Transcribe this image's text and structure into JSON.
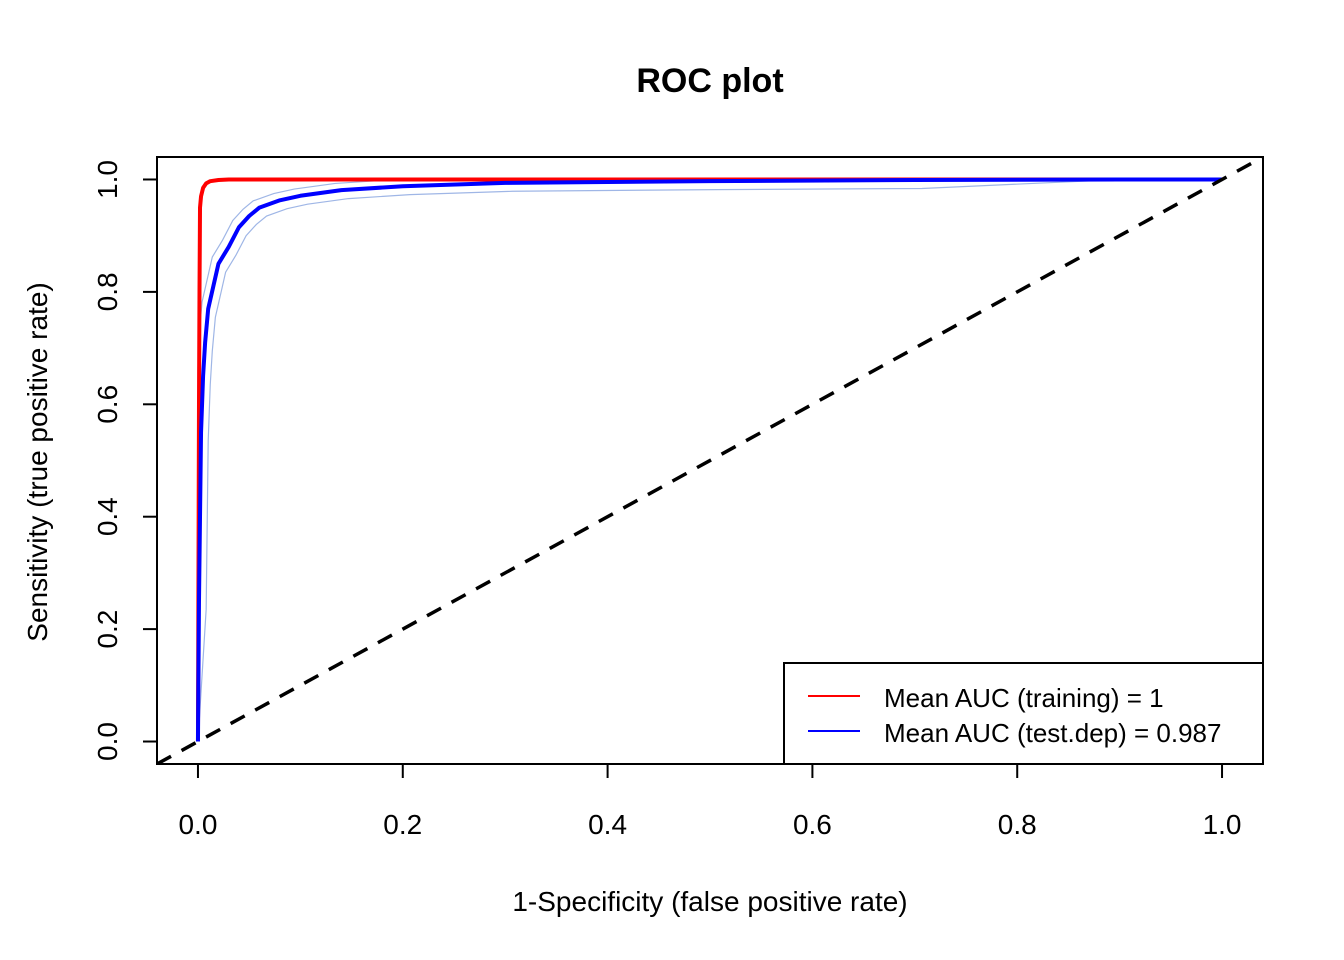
{
  "chart_data": {
    "type": "line",
    "title": "ROC plot",
    "xlabel": "1-Specificity (false positive rate)",
    "ylabel": "Sensitivity (true positive rate)",
    "xlim": [
      -0.04,
      1.04
    ],
    "ylim": [
      -0.04,
      1.04
    ],
    "x_ticks": [
      0.0,
      0.2,
      0.4,
      0.6,
      0.8,
      1.0
    ],
    "y_ticks": [
      0.0,
      0.2,
      0.4,
      0.6,
      0.8,
      1.0
    ],
    "x_tick_labels": [
      "0.0",
      "0.2",
      "0.4",
      "0.6",
      "0.8",
      "1.0"
    ],
    "y_tick_labels": [
      "0.0",
      "0.2",
      "0.4",
      "0.6",
      "0.8",
      "1.0"
    ],
    "grid": false,
    "legend_position": "bottom-right",
    "series": [
      {
        "name": "Mean AUC (training) = 1",
        "color": "#ff0000",
        "x": [
          0.0,
          0.0005,
          0.001,
          0.0015,
          0.002,
          0.003,
          0.005,
          0.008,
          0.012,
          0.02,
          0.03,
          0.06,
          0.2,
          0.5,
          0.9,
          1.0
        ],
        "y": [
          0.0,
          0.3,
          0.6,
          0.8,
          0.95,
          0.97,
          0.985,
          0.993,
          0.997,
          0.999,
          1.0,
          1.0,
          1.0,
          1.0,
          1.0,
          1.0
        ]
      },
      {
        "name": "Mean AUC (test.dep) = 0.987",
        "color": "#0000ff",
        "x": [
          0.0,
          0.001,
          0.002,
          0.003,
          0.005,
          0.007,
          0.01,
          0.015,
          0.02,
          0.03,
          0.04,
          0.05,
          0.06,
          0.08,
          0.1,
          0.14,
          0.2,
          0.3,
          0.5,
          0.7,
          0.9,
          1.0
        ],
        "y": [
          0.0,
          0.25,
          0.4,
          0.55,
          0.65,
          0.71,
          0.77,
          0.81,
          0.85,
          0.88,
          0.915,
          0.935,
          0.95,
          0.963,
          0.971,
          0.981,
          0.988,
          0.994,
          0.997,
          0.999,
          1.0,
          1.0
        ]
      },
      {
        "name": "",
        "color": "#000000",
        "dashed": true,
        "x": [
          -0.04,
          1.04
        ],
        "y": [
          -0.04,
          1.04
        ]
      }
    ]
  }
}
